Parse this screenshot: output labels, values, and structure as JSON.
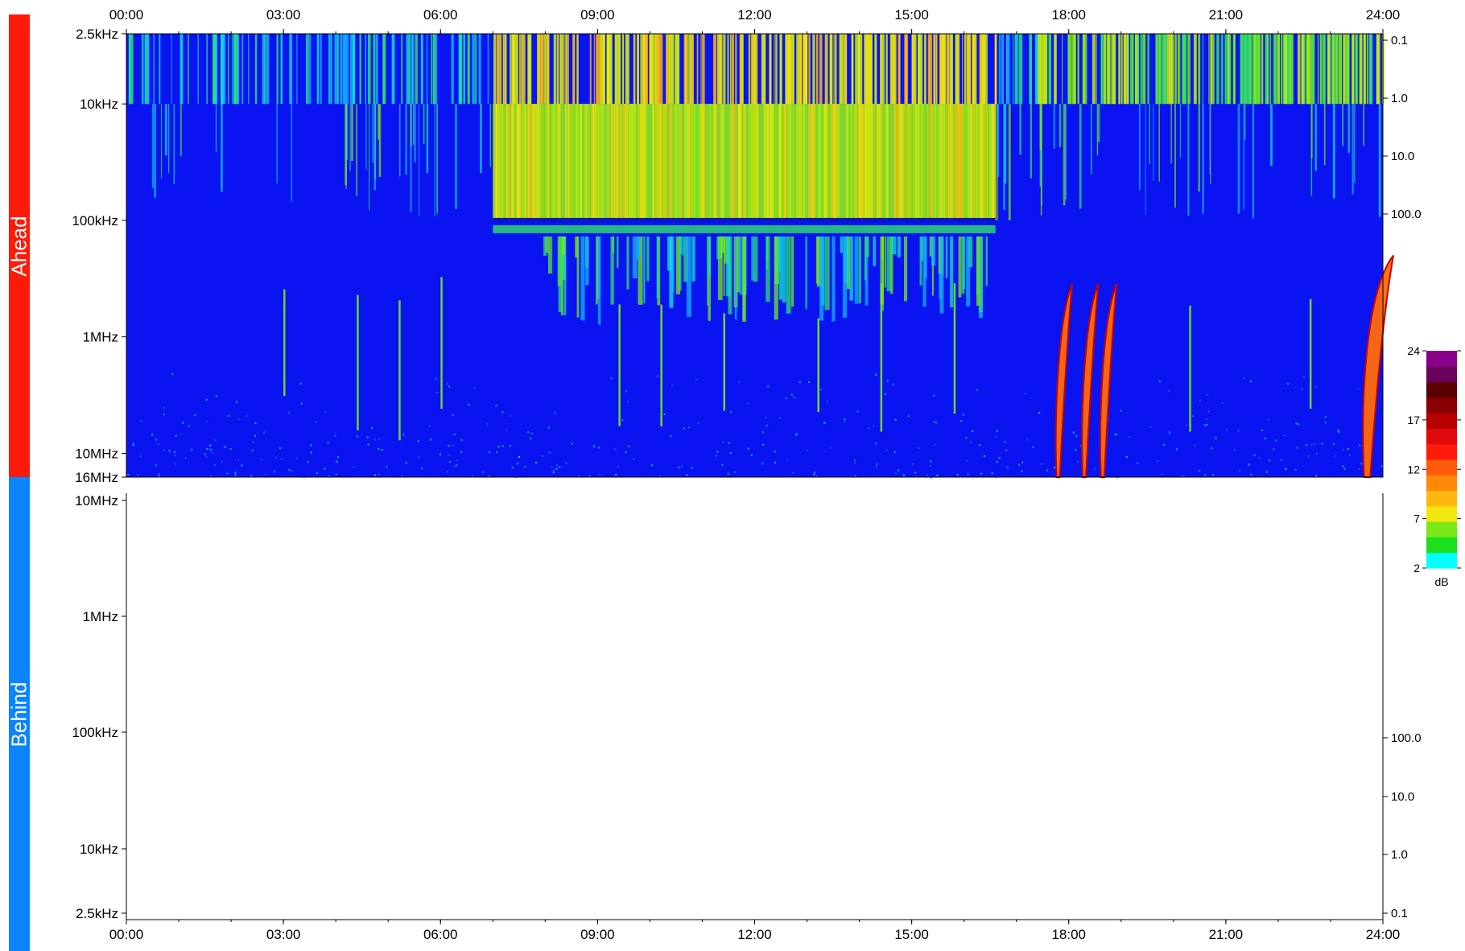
{
  "colors": {
    "ahead": "#ff1a0a",
    "behind": "#0a84ff",
    "background": "#0a14f0"
  },
  "labels": {
    "ahead": "Ahead",
    "behind": "Behind"
  },
  "chart_data": [
    {
      "type": "heatmap",
      "name": "Ahead",
      "x_ticks": [
        "00:00",
        "03:00",
        "06:00",
        "09:00",
        "12:00",
        "15:00",
        "18:00",
        "21:00",
        "24:00"
      ],
      "x_range_hours": [
        0,
        24
      ],
      "y_scale": "log",
      "y_ticks_left": [
        "2.5kHz",
        "10kHz",
        "100kHz",
        "1MHz",
        "10MHz",
        "16MHz"
      ],
      "y_tick_values_hz": [
        2500,
        10000,
        100000,
        1000000,
        10000000,
        16000000
      ],
      "y_ticks_right": [
        "0.1",
        "1.0",
        "10.0",
        "100.0"
      ],
      "features": {
        "broadband_activity_hours": [
          7.0,
          16.6
        ],
        "type_iii_bursts_hours": [
          17.85,
          18.35,
          18.7,
          23.8
        ],
        "small_bursts_hours": [
          3.0,
          4.4,
          5.2,
          6.0,
          9.4,
          10.2,
          11.4,
          13.2,
          14.4,
          15.8,
          20.3,
          22.6
        ]
      }
    },
    {
      "type": "heatmap",
      "name": "Behind",
      "x_ticks": [
        "00:00",
        "03:00",
        "06:00",
        "09:00",
        "12:00",
        "15:00",
        "18:00",
        "21:00",
        "24:00"
      ],
      "x_range_hours": [
        0,
        24
      ],
      "y_scale": "log",
      "y_ticks_left": [
        "10MHz",
        "1MHz",
        "100kHz",
        "10kHz",
        "2.5kHz"
      ],
      "y_ticks_right": [
        "100.0",
        "10.0",
        "1.0",
        "0.1"
      ],
      "data": "empty"
    }
  ],
  "colorbar": {
    "ticks": [
      "24",
      "17",
      "12",
      "7",
      "2"
    ],
    "tick_values": [
      24,
      17,
      12,
      7,
      2
    ],
    "range": [
      2,
      24
    ],
    "unit": "dB"
  }
}
